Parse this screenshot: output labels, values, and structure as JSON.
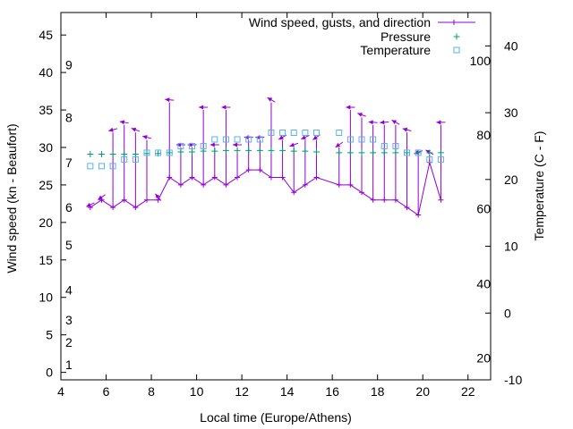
{
  "chart_data": {
    "type": "line",
    "xlabel": "Local time (Europe/Athens)",
    "ylabel": "Wind speed (kn - Beaufort)",
    "y2label": "Temperature (C - F)",
    "xlim": [
      4,
      23
    ],
    "ylim": [
      -1,
      48
    ],
    "y2lim": [
      -10,
      45
    ],
    "x_ticks": [
      4,
      6,
      8,
      10,
      12,
      14,
      16,
      18,
      20,
      22
    ],
    "y_ticks": [
      0,
      5,
      10,
      15,
      20,
      25,
      30,
      35,
      40,
      45
    ],
    "y2_ticks": [
      -10,
      0,
      10,
      20,
      30,
      40
    ],
    "beaufort_labels": [
      {
        "label": "1",
        "kn": 1
      },
      {
        "label": "2",
        "kn": 4
      },
      {
        "label": "3",
        "kn": 7
      },
      {
        "label": "4",
        "kn": 11
      },
      {
        "label": "5",
        "kn": 17
      },
      {
        "label": "6",
        "kn": 22
      },
      {
        "label": "7",
        "kn": 28
      },
      {
        "label": "8",
        "kn": 34
      },
      {
        "label": "9",
        "kn": 41
      }
    ],
    "fahrenheit_labels": [
      {
        "label": "20",
        "c": -6.7
      },
      {
        "label": "40",
        "c": 4.4
      },
      {
        "label": "60",
        "c": 15.6
      },
      {
        "label": "80",
        "c": 26.7
      },
      {
        "label": "100",
        "c": 37.8
      }
    ],
    "legend_position": "top-right",
    "series": [
      {
        "name": "Wind speed, gusts, and direction",
        "color": "#9400d3",
        "x": [
          5.3,
          5.8,
          6.3,
          6.8,
          7.3,
          7.8,
          8.3,
          8.8,
          9.3,
          9.8,
          10.3,
          10.8,
          11.3,
          11.8,
          12.3,
          12.8,
          13.3,
          13.8,
          14.3,
          14.8,
          15.3,
          16.3,
          16.8,
          17.3,
          17.8,
          18.3,
          18.8,
          19.3,
          19.8,
          20.3,
          20.8
        ],
        "y": [
          22,
          23,
          22,
          23,
          22,
          23,
          23,
          26,
          25,
          26,
          25,
          26,
          25,
          26,
          27,
          27,
          26,
          26,
          24,
          25,
          26,
          25,
          25,
          24,
          23,
          23,
          23,
          22,
          21,
          28,
          23
        ],
        "gust": [
          22,
          23,
          32,
          33,
          32,
          31,
          23,
          36,
          30,
          30,
          35,
          30,
          35,
          30,
          31,
          31,
          36,
          31,
          30,
          31,
          31,
          30,
          35,
          34,
          33,
          33,
          33,
          32,
          29,
          29,
          33
        ],
        "dir_deg": [
          245,
          235,
          255,
          280,
          290,
          285,
          320,
          275,
          270,
          270,
          270,
          270,
          270,
          270,
          270,
          270,
          300,
          240,
          250,
          245,
          235,
          235,
          270,
          290,
          275,
          265,
          300,
          285,
          250,
          300,
          270
        ]
      },
      {
        "name": "Pressure",
        "color": "#009e73",
        "x": [
          5.3,
          5.8,
          6.3,
          6.8,
          7.3,
          7.8,
          8.3,
          8.8,
          9.3,
          9.8,
          10.3,
          10.8,
          11.3,
          11.8,
          12.3,
          12.8,
          13.3,
          13.8,
          14.3,
          14.8,
          15.3,
          16.3,
          16.8,
          17.3,
          17.8,
          18.3,
          18.8,
          19.3,
          19.8,
          20.3,
          20.8
        ],
        "y": [
          29.1,
          29.1,
          29.1,
          29.1,
          29.1,
          29.2,
          29.2,
          29.3,
          29.4,
          29.4,
          29.5,
          29.5,
          29.6,
          29.6,
          29.6,
          29.6,
          29.6,
          29.6,
          29.5,
          29.5,
          29.4,
          29.3,
          29.3,
          29.3,
          29.3,
          29.3,
          29.3,
          29.3,
          29.3,
          29.3,
          29.3
        ]
      },
      {
        "name": "Temperature",
        "color": "#56b4e9",
        "x": [
          5.3,
          5.8,
          6.3,
          6.8,
          7.3,
          7.8,
          8.3,
          8.8,
          9.3,
          9.8,
          10.3,
          10.8,
          11.3,
          11.8,
          12.3,
          12.8,
          13.3,
          13.8,
          14.3,
          14.8,
          15.3,
          16.3,
          16.8,
          17.3,
          17.8,
          18.3,
          18.8,
          19.3,
          19.8,
          20.3,
          20.8
        ],
        "y": [
          22,
          22,
          22,
          23,
          23,
          24,
          24,
          24,
          25,
          25,
          25,
          26,
          26,
          26,
          26,
          26,
          27,
          27,
          27,
          27,
          27,
          27,
          26,
          26,
          26,
          25,
          25,
          24,
          24,
          23,
          23
        ]
      }
    ]
  }
}
